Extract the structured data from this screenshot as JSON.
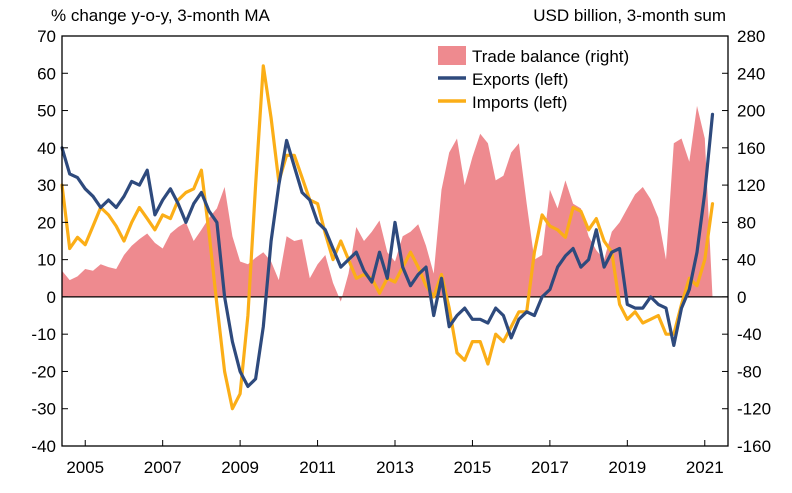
{
  "chart_data": {
    "type": "bar+line",
    "left_axis_label": "% change y-o-y, 3-month MA",
    "right_axis_label": "USD billion, 3-month sum",
    "ylim_left": [
      -40,
      70
    ],
    "ylim_right": [
      -160,
      280
    ],
    "y_ticks_left": [
      -40,
      -30,
      -20,
      -10,
      0,
      10,
      20,
      30,
      40,
      50,
      60,
      70
    ],
    "y_ticks_right": [
      -160,
      -120,
      -80,
      -40,
      0,
      40,
      80,
      120,
      160,
      200,
      240,
      280
    ],
    "x_ticks": [
      "2005",
      "2007",
      "2009",
      "2011",
      "2013",
      "2015",
      "2017",
      "2019",
      "2021"
    ],
    "x_tick_years": [
      2005,
      2007,
      2009,
      2011,
      2013,
      2015,
      2017,
      2019,
      2021
    ],
    "xlim": [
      2004.4,
      2021.6
    ],
    "grid": false,
    "legend_position": "top-right",
    "colors": {
      "trade_balance": "#ee8a8f",
      "exports": "#2e4a7d",
      "imports": "#fbae17"
    },
    "series": [
      {
        "name": "Trade balance (right)",
        "axis": "right",
        "kind": "area",
        "x": [
          2004.4,
          2004.6,
          2004.8,
          2005.0,
          2005.2,
          2005.4,
          2005.6,
          2005.8,
          2006.0,
          2006.2,
          2006.4,
          2006.6,
          2006.8,
          2007.0,
          2007.2,
          2007.4,
          2007.6,
          2007.8,
          2008.0,
          2008.2,
          2008.4,
          2008.6,
          2008.8,
          2009.0,
          2009.2,
          2009.4,
          2009.6,
          2009.8,
          2010.0,
          2010.2,
          2010.4,
          2010.6,
          2010.8,
          2011.0,
          2011.2,
          2011.4,
          2011.6,
          2011.8,
          2012.0,
          2012.2,
          2012.4,
          2012.6,
          2012.8,
          2013.0,
          2013.2,
          2013.4,
          2013.6,
          2013.8,
          2014.0,
          2014.2,
          2014.4,
          2014.6,
          2014.8,
          2015.0,
          2015.2,
          2015.4,
          2015.6,
          2015.8,
          2016.0,
          2016.2,
          2016.4,
          2016.6,
          2016.8,
          2017.0,
          2017.2,
          2017.4,
          2017.6,
          2017.8,
          2018.0,
          2018.2,
          2018.4,
          2018.6,
          2018.8,
          2019.0,
          2019.2,
          2019.4,
          2019.6,
          2019.8,
          2020.0,
          2020.2,
          2020.4,
          2020.6,
          2020.8,
          2021.0,
          2021.2
        ],
        "values": [
          28,
          18,
          22,
          30,
          28,
          35,
          32,
          30,
          45,
          55,
          62,
          68,
          58,
          52,
          68,
          75,
          80,
          60,
          72,
          85,
          95,
          118,
          65,
          38,
          35,
          42,
          48,
          38,
          18,
          65,
          60,
          62,
          20,
          35,
          45,
          15,
          -5,
          25,
          75,
          60,
          70,
          82,
          48,
          38,
          65,
          70,
          78,
          55,
          25,
          115,
          155,
          170,
          120,
          150,
          175,
          165,
          125,
          130,
          155,
          165,
          100,
          40,
          45,
          115,
          95,
          125,
          100,
          95,
          65,
          50,
          40,
          70,
          80,
          95,
          110,
          118,
          105,
          85,
          40,
          165,
          170,
          145,
          205,
          170,
          0
        ]
      },
      {
        "name": "Exports (left)",
        "axis": "left",
        "kind": "line",
        "x": [
          2004.4,
          2004.6,
          2004.8,
          2005.0,
          2005.2,
          2005.4,
          2005.6,
          2005.8,
          2006.0,
          2006.2,
          2006.4,
          2006.6,
          2006.8,
          2007.0,
          2007.2,
          2007.4,
          2007.6,
          2007.8,
          2008.0,
          2008.2,
          2008.4,
          2008.6,
          2008.8,
          2009.0,
          2009.2,
          2009.4,
          2009.6,
          2009.8,
          2010.0,
          2010.2,
          2010.4,
          2010.6,
          2010.8,
          2011.0,
          2011.2,
          2011.4,
          2011.6,
          2011.8,
          2012.0,
          2012.2,
          2012.4,
          2012.6,
          2012.8,
          2013.0,
          2013.2,
          2013.4,
          2013.6,
          2013.8,
          2014.0,
          2014.2,
          2014.4,
          2014.6,
          2014.8,
          2015.0,
          2015.2,
          2015.4,
          2015.6,
          2015.8,
          2016.0,
          2016.2,
          2016.4,
          2016.6,
          2016.8,
          2017.0,
          2017.2,
          2017.4,
          2017.6,
          2017.8,
          2018.0,
          2018.2,
          2018.4,
          2018.6,
          2018.8,
          2019.0,
          2019.2,
          2019.4,
          2019.6,
          2019.8,
          2020.0,
          2020.2,
          2020.4,
          2020.6,
          2020.8,
          2021.0,
          2021.2
        ],
        "values": [
          40,
          33,
          32,
          29,
          27,
          24,
          26,
          24,
          27,
          31,
          30,
          34,
          22,
          26,
          29,
          25,
          20,
          25,
          28,
          23,
          20,
          0,
          -12,
          -20,
          -24,
          -22,
          -8,
          15,
          30,
          42,
          35,
          28,
          26,
          20,
          18,
          13,
          8,
          10,
          12,
          7,
          4,
          12,
          5,
          20,
          8,
          3,
          6,
          8,
          -5,
          5,
          -8,
          -5,
          -3,
          -6,
          -6,
          -7,
          -3,
          -5,
          -11,
          -6,
          -4,
          -5,
          0,
          2,
          8,
          11,
          13,
          8,
          10,
          18,
          8,
          12,
          13,
          -2,
          -3,
          -3,
          0,
          -2,
          -3,
          -13,
          -3,
          2,
          12,
          28,
          49
        ]
      },
      {
        "name": "Imports (left)",
        "axis": "left",
        "kind": "line",
        "x": [
          2004.4,
          2004.6,
          2004.8,
          2005.0,
          2005.2,
          2005.4,
          2005.6,
          2005.8,
          2006.0,
          2006.2,
          2006.4,
          2006.6,
          2006.8,
          2007.0,
          2007.2,
          2007.4,
          2007.6,
          2007.8,
          2008.0,
          2008.2,
          2008.4,
          2008.6,
          2008.8,
          2009.0,
          2009.2,
          2009.4,
          2009.6,
          2009.8,
          2010.0,
          2010.2,
          2010.4,
          2010.6,
          2010.8,
          2011.0,
          2011.2,
          2011.4,
          2011.6,
          2011.8,
          2012.0,
          2012.2,
          2012.4,
          2012.6,
          2012.8,
          2013.0,
          2013.2,
          2013.4,
          2013.6,
          2013.8,
          2014.0,
          2014.2,
          2014.4,
          2014.6,
          2014.8,
          2015.0,
          2015.2,
          2015.4,
          2015.6,
          2015.8,
          2016.0,
          2016.2,
          2016.4,
          2016.6,
          2016.8,
          2017.0,
          2017.2,
          2017.4,
          2017.6,
          2017.8,
          2018.0,
          2018.2,
          2018.4,
          2018.6,
          2018.8,
          2019.0,
          2019.2,
          2019.4,
          2019.6,
          2019.8,
          2020.0,
          2020.2,
          2020.4,
          2020.6,
          2020.8,
          2021.0,
          2021.2
        ],
        "values": [
          30,
          13,
          16,
          14,
          19,
          24,
          22,
          19,
          15,
          20,
          24,
          21,
          18,
          22,
          21,
          26,
          28,
          29,
          34,
          17,
          -2,
          -20,
          -30,
          -26,
          -5,
          30,
          62,
          48,
          31,
          38,
          38,
          32,
          26,
          25,
          17,
          10,
          15,
          10,
          5,
          6,
          5,
          1,
          5,
          4,
          8,
          12,
          8,
          3,
          0,
          6,
          -3,
          -15,
          -17,
          -12,
          -12,
          -18,
          -10,
          -12,
          -8,
          -4,
          -4,
          12,
          22,
          19,
          18,
          16,
          24,
          23,
          18,
          21,
          15,
          12,
          -2,
          -6,
          -4,
          -7,
          -6,
          -5,
          -10,
          -10,
          -2,
          5,
          3,
          10,
          25
        ]
      }
    ]
  }
}
